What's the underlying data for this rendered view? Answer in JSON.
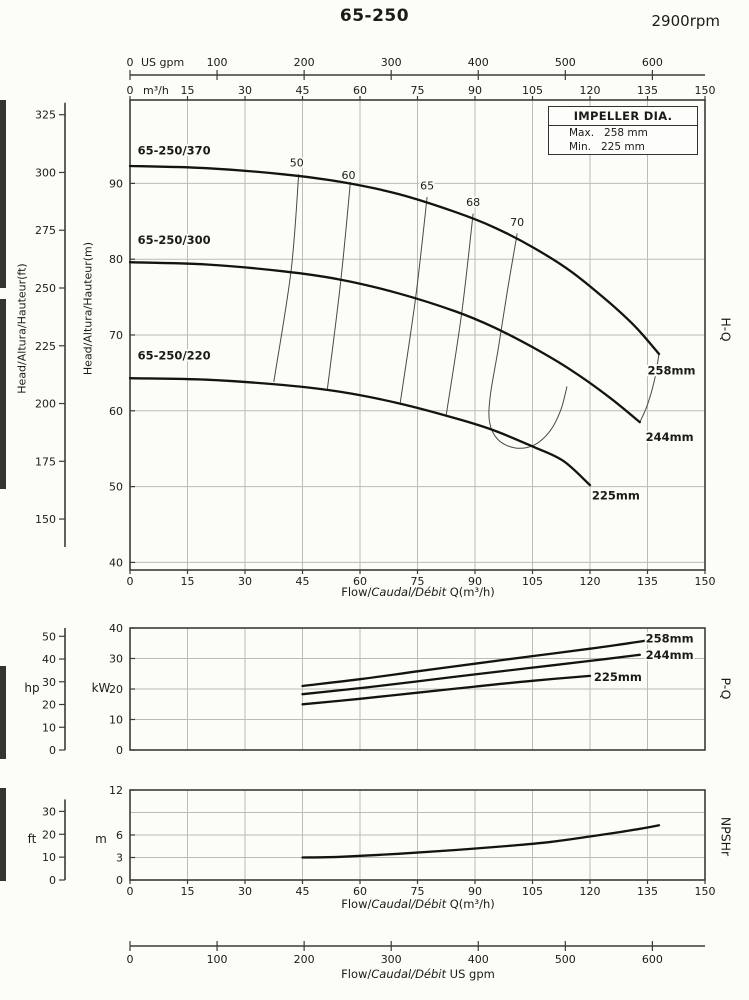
{
  "header": {
    "title": "65-250",
    "rpm": "2900rpm"
  },
  "gpm_axis": {
    "unit": "US gpm",
    "ticks": [
      0,
      100,
      200,
      300,
      400,
      500,
      600
    ],
    "label_parts": {
      "p1": "Flow/",
      "p2": "Caudal/Débit",
      "p3": "  US gpm"
    }
  },
  "chart_data": [
    {
      "id": "hq",
      "type": "line",
      "side_label": "H-Q",
      "x": {
        "label": "Flow/Caudal/Débit Q(m³/h)",
        "label_parts": {
          "p1": "Flow/",
          "p2": "Caudal/Débit",
          "p3": " Q(m³/h)"
        },
        "unit": "m³/h",
        "min": 0,
        "max": 150,
        "ticks": [
          0,
          15,
          30,
          45,
          60,
          75,
          90,
          105,
          120,
          135,
          150
        ],
        "show_labels": true,
        "top_labels": true
      },
      "y": {
        "label": "Head/Altura/Hauteur(m)",
        "unit": "m",
        "min": 39,
        "max": 101,
        "ticks": [
          40,
          50,
          60,
          70,
          80,
          90
        ]
      },
      "y2": {
        "label": "Head/Altura/Hauteur(ft)",
        "unit": "ft",
        "ticks": [
          150,
          175,
          200,
          225,
          250,
          275,
          300,
          325
        ],
        "to_base": 0.3048
      },
      "legend": {
        "title": "IMPELLER DIA.",
        "rows": [
          {
            "k": "Max.",
            "v": "258 mm"
          },
          {
            "k": "Min.",
            "v": "225 mm"
          }
        ]
      },
      "series": [
        {
          "name": "65-250/370",
          "impeller": "258mm",
          "label_at": [
            2,
            93.8
          ],
          "end_label": "258mm",
          "end_label_at": [
            135,
            64.8
          ],
          "points": [
            [
              0,
              92.3
            ],
            [
              20,
              92
            ],
            [
              40,
              91.2
            ],
            [
              55,
              90.2
            ],
            [
              70,
              88.6
            ],
            [
              85,
              86.2
            ],
            [
              95,
              84.2
            ],
            [
              105,
              81.6
            ],
            [
              115,
              78.4
            ],
            [
              125,
              74.3
            ],
            [
              132,
              71
            ],
            [
              138,
              67.5
            ]
          ]
        },
        {
          "name": "65-250/300",
          "impeller": "244mm",
          "label_at": [
            2,
            82.0
          ],
          "end_label": "244mm",
          "end_label_at": [
            134.5,
            56
          ],
          "points": [
            [
              0,
              79.6
            ],
            [
              20,
              79.3
            ],
            [
              40,
              78.4
            ],
            [
              55,
              77.3
            ],
            [
              70,
              75.5
            ],
            [
              85,
              73.1
            ],
            [
              95,
              71
            ],
            [
              105,
              68.4
            ],
            [
              115,
              65.4
            ],
            [
              125,
              61.8
            ],
            [
              133,
              58.5
            ]
          ]
        },
        {
          "name": "65-250/220",
          "impeller": "225mm",
          "label_at": [
            2,
            66.8
          ],
          "end_label": "225mm",
          "end_label_at": [
            120.5,
            48.3
          ],
          "points": [
            [
              0,
              64.3
            ],
            [
              20,
              64.1
            ],
            [
              40,
              63.4
            ],
            [
              55,
              62.5
            ],
            [
              70,
              61
            ],
            [
              85,
              59
            ],
            [
              95,
              57.4
            ],
            [
              105,
              55.3
            ],
            [
              113,
              53.4
            ],
            [
              120,
              50.2
            ]
          ]
        }
      ],
      "efficiency_lines": [
        {
          "label": "50",
          "label_at": [
            43.5,
            92.2
          ],
          "points": [
            [
              44,
              91.2
            ],
            [
              42,
              78.4
            ],
            [
              37.5,
              63.8
            ]
          ]
        },
        {
          "label": "60",
          "label_at": [
            57,
            90.6
          ],
          "points": [
            [
              57.5,
              90.2
            ],
            [
              55,
              77.2
            ],
            [
              51.5,
              62.9
            ]
          ]
        },
        {
          "label": "65",
          "label_at": [
            77.5,
            89.2
          ],
          "points": [
            [
              77.5,
              88.2
            ],
            [
              74.5,
              74.9
            ],
            [
              70.5,
              61.1
            ]
          ]
        },
        {
          "label": "68",
          "label_at": [
            89.5,
            87.0
          ],
          "points": [
            [
              89.5,
              86
            ],
            [
              86.5,
              72.8
            ],
            [
              82.5,
              59.5
            ]
          ]
        },
        {
          "label": "70",
          "label_at": [
            101,
            84.4
          ],
          "points": [
            [
              101,
              83.4
            ],
            [
              98.5,
              76
            ],
            [
              96,
              68
            ],
            [
              94,
              62
            ],
            [
              93.8,
              58.5
            ],
            [
              96,
              56.2
            ],
            [
              100.5,
              55.1
            ],
            [
              105.5,
              55.5
            ],
            [
              109.5,
              57.3
            ],
            [
              112.3,
              60
            ],
            [
              114,
              63.2
            ]
          ]
        }
      ],
      "boundary": [
        [
          138,
          67.5
        ],
        [
          136.8,
          64
        ],
        [
          135,
          60.8
        ],
        [
          133,
          58.5
        ]
      ]
    },
    {
      "id": "pq",
      "type": "line",
      "side_label": "P-Q",
      "x": {
        "min": 0,
        "max": 150,
        "ticks": [
          0,
          15,
          30,
          45,
          60,
          75,
          90,
          105,
          120,
          135,
          150
        ],
        "show_labels": false
      },
      "y": {
        "unit": "kW",
        "min": 0,
        "max": 40,
        "ticks": [
          0,
          10,
          20,
          30,
          40
        ]
      },
      "y2": {
        "unit": "hp",
        "ticks": [
          0,
          10,
          20,
          30,
          40,
          50
        ],
        "to_base": 0.7457
      },
      "series": [
        {
          "name": "258mm",
          "end_label": "258mm",
          "end_label_at": [
            134.5,
            35.2
          ],
          "points": [
            [
              45,
              21
            ],
            [
              60,
              23.2
            ],
            [
              75,
              25.8
            ],
            [
              90,
              28.3
            ],
            [
              105,
              30.8
            ],
            [
              120,
              33.2
            ],
            [
              130,
              35
            ],
            [
              138,
              36.5
            ]
          ]
        },
        {
          "name": "244mm",
          "end_label": "244mm",
          "end_label_at": [
            134.5,
            29.8
          ],
          "points": [
            [
              45,
              18.3
            ],
            [
              60,
              20.3
            ],
            [
              75,
              22.5
            ],
            [
              90,
              24.8
            ],
            [
              105,
              27
            ],
            [
              120,
              29.2
            ],
            [
              133,
              31.2
            ]
          ]
        },
        {
          "name": "225mm",
          "end_label": "225mm",
          "end_label_at": [
            121,
            22.6
          ],
          "points": [
            [
              45,
              15
            ],
            [
              60,
              16.8
            ],
            [
              75,
              18.8
            ],
            [
              90,
              20.8
            ],
            [
              105,
              22.7
            ],
            [
              120,
              24.3
            ]
          ]
        }
      ]
    },
    {
      "id": "npsh",
      "type": "line",
      "side_label": "NPSHr",
      "x": {
        "label": "Flow/Caudal/Débit Q(m³/h)",
        "label_parts": {
          "p1": "Flow/",
          "p2": "Caudal/Débit",
          "p3": " Q(m³/h)"
        },
        "min": 0,
        "max": 150,
        "ticks": [
          0,
          15,
          30,
          45,
          60,
          75,
          90,
          105,
          120,
          135,
          150
        ],
        "show_labels": true
      },
      "y": {
        "unit": "m",
        "min": 0,
        "max": 12,
        "ticks": [
          0,
          3,
          6,
          12
        ]
      },
      "y2": {
        "unit": "ft",
        "ticks": [
          0,
          10,
          20,
          30
        ],
        "to_base": 0.3048
      },
      "series": [
        {
          "name": "NPSHr",
          "points": [
            [
              45,
              3
            ],
            [
              55,
              3.1
            ],
            [
              70,
              3.5
            ],
            [
              85,
              4
            ],
            [
              100,
              4.6
            ],
            [
              110,
              5.1
            ],
            [
              120,
              5.8
            ],
            [
              128,
              6.4
            ],
            [
              135,
              7
            ],
            [
              138,
              7.3
            ]
          ]
        }
      ]
    }
  ]
}
